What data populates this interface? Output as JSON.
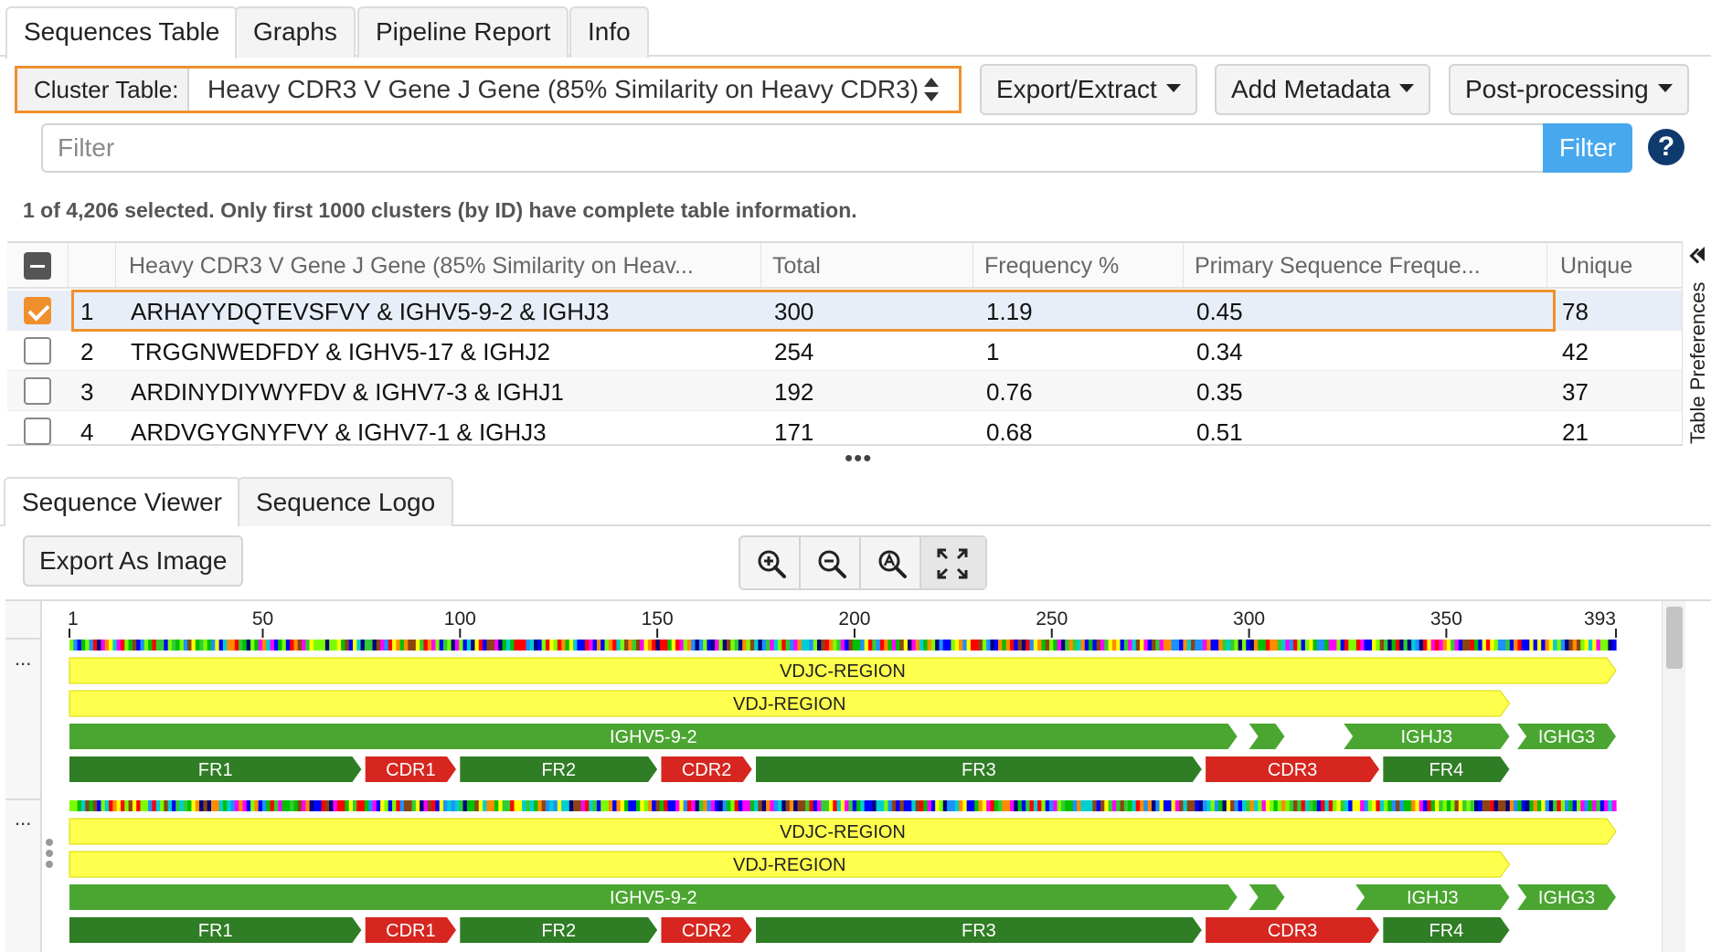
{
  "top_tabs": [
    "Sequences Table",
    "Graphs",
    "Pipeline Report",
    "Info"
  ],
  "toolbar": {
    "cluster_label": "Cluster Table:",
    "cluster_value": "Heavy CDR3 V Gene J Gene (85% Similarity on Heavy CDR3)",
    "export_label": "Export/Extract",
    "metadata_label": "Add Metadata",
    "postprocessing_label": "Post-processing"
  },
  "filter": {
    "placeholder": "Filter",
    "button_label": "Filter",
    "help_glyph": "?"
  },
  "selection_info": "1 of 4,206 selected. Only first 1000 clusters (by ID) have complete table information.",
  "table": {
    "columns": [
      "Heavy CDR3 V Gene J Gene (85% Similarity on Heav...",
      "Total",
      "Frequency %",
      "Primary Sequence Freque...",
      "Unique"
    ],
    "rows": [
      {
        "id": "1",
        "name": "ARHAYYDQTEVSFVY & IGHV5-9-2 & IGHJ3",
        "total": "300",
        "freq": "1.19",
        "primary": "0.45",
        "unique": "78",
        "checked": true
      },
      {
        "id": "2",
        "name": "TRGGNWEDFDY & IGHV5-17 & IGHJ2",
        "total": "254",
        "freq": "1",
        "primary": "0.34",
        "unique": "42",
        "checked": false
      },
      {
        "id": "3",
        "name": "ARDINYDIYWYFDV & IGHV7-3 & IGHJ1",
        "total": "192",
        "freq": "0.76",
        "primary": "0.35",
        "unique": "37",
        "checked": false
      },
      {
        "id": "4",
        "name": "ARDVGYGNYFVY & IGHV7-1 & IGHJ3",
        "total": "171",
        "freq": "0.68",
        "primary": "0.51",
        "unique": "21",
        "checked": false
      }
    ]
  },
  "side_panel_label": "Table Preferences",
  "bottom_tabs": [
    "Sequence Viewer",
    "Sequence Logo"
  ],
  "export_image_label": "Export As Image",
  "zoom_icons": [
    "zoom-in-icon",
    "zoom-out-icon",
    "zoom-fit-icon",
    "expand-icon"
  ],
  "viewer": {
    "length": 393,
    "ruler_ticks": [
      1,
      50,
      100,
      150,
      200,
      250,
      300,
      350,
      393
    ],
    "gutter_glyph": "...",
    "colors": {
      "region": "#ffff4d",
      "gene": "#4aa630",
      "framework": "#2f7d24",
      "cdr": "#d6261f"
    },
    "sequences": [
      {
        "tracks": [
          [
            {
              "label": "VDJC-REGION",
              "start": 1,
              "end": 393,
              "color": "region"
            }
          ],
          [
            {
              "label": "VDJ-REGION",
              "start": 1,
              "end": 366,
              "color": "region"
            }
          ],
          [
            {
              "label": "IGHV5-9-2",
              "start": 1,
              "end": 297,
              "color": "gene"
            },
            {
              "label": "",
              "start": 300,
              "end": 309,
              "color": "gene"
            },
            {
              "label": "IGHJ3",
              "start": 324,
              "end": 366,
              "color": "gene"
            },
            {
              "label": "IGHG3",
              "start": 368,
              "end": 393,
              "color": "gene"
            }
          ],
          [
            {
              "label": "FR1",
              "start": 1,
              "end": 75,
              "color": "framework"
            },
            {
              "label": "CDR1",
              "start": 76,
              "end": 99,
              "color": "cdr"
            },
            {
              "label": "FR2",
              "start": 100,
              "end": 150,
              "color": "framework"
            },
            {
              "label": "CDR2",
              "start": 151,
              "end": 174,
              "color": "cdr"
            },
            {
              "label": "FR3",
              "start": 175,
              "end": 288,
              "color": "framework"
            },
            {
              "label": "CDR3",
              "start": 289,
              "end": 333,
              "color": "cdr"
            },
            {
              "label": "FR4",
              "start": 334,
              "end": 366,
              "color": "framework"
            }
          ]
        ]
      },
      {
        "tracks": [
          [
            {
              "label": "VDJC-REGION",
              "start": 1,
              "end": 393,
              "color": "region"
            }
          ],
          [
            {
              "label": "VDJ-REGION",
              "start": 1,
              "end": 366,
              "color": "region"
            }
          ],
          [
            {
              "label": "IGHV5-9-2",
              "start": 1,
              "end": 297,
              "color": "gene"
            },
            {
              "label": "",
              "start": 300,
              "end": 309,
              "color": "gene"
            },
            {
              "label": "IGHJ3",
              "start": 327,
              "end": 366,
              "color": "gene"
            },
            {
              "label": "IGHG3",
              "start": 368,
              "end": 393,
              "color": "gene"
            }
          ],
          [
            {
              "label": "FR1",
              "start": 1,
              "end": 75,
              "color": "framework"
            },
            {
              "label": "CDR1",
              "start": 76,
              "end": 99,
              "color": "cdr"
            },
            {
              "label": "FR2",
              "start": 100,
              "end": 150,
              "color": "framework"
            },
            {
              "label": "CDR2",
              "start": 151,
              "end": 174,
              "color": "cdr"
            },
            {
              "label": "FR3",
              "start": 175,
              "end": 288,
              "color": "framework"
            },
            {
              "label": "CDR3",
              "start": 289,
              "end": 333,
              "color": "cdr"
            },
            {
              "label": "FR4",
              "start": 334,
              "end": 366,
              "color": "framework"
            }
          ]
        ]
      }
    ]
  }
}
